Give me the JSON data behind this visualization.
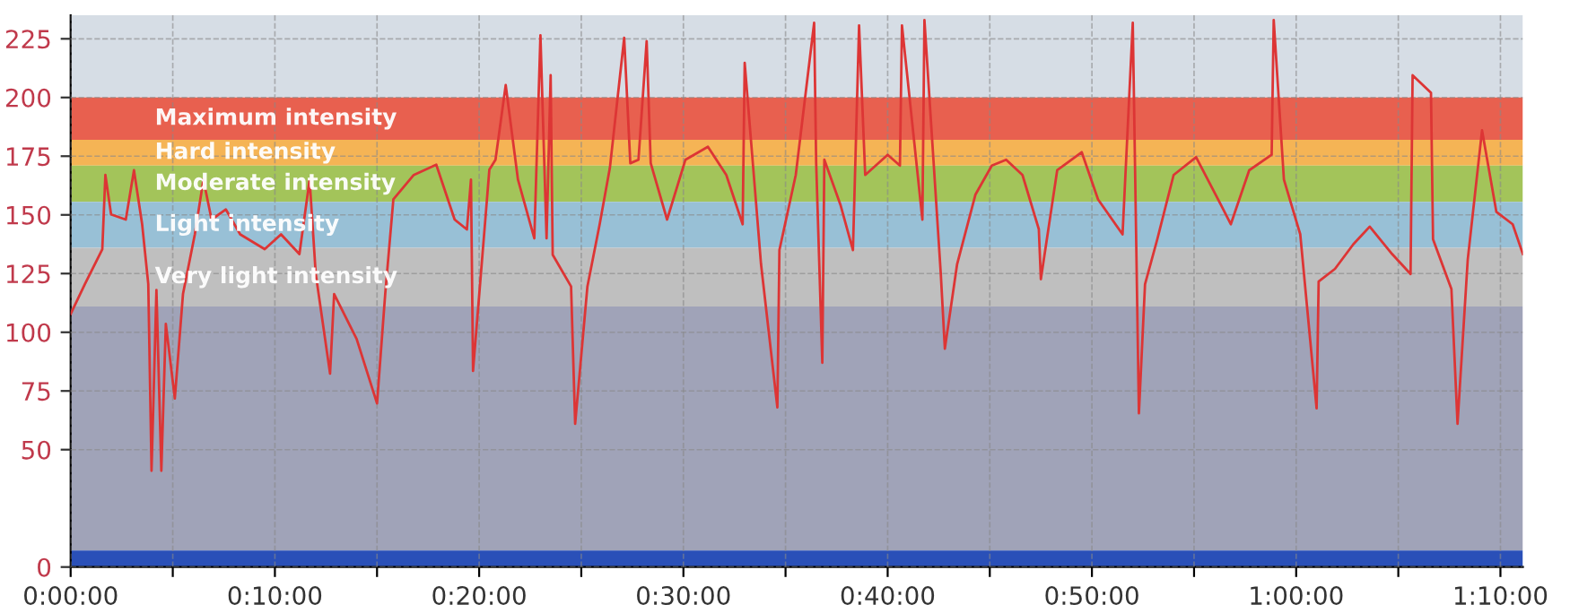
{
  "chart_data": {
    "type": "line",
    "x": [
      0.0,
      0.7,
      1.55,
      1.7,
      1.98,
      2.7,
      3.1,
      3.5,
      3.8,
      3.96,
      4.2,
      4.44,
      4.66,
      5.1,
      5.5,
      6.08,
      6.5,
      6.9,
      7.6,
      8.3,
      9.5,
      10.3,
      11.2,
      11.7,
      12.0,
      12.7,
      12.9,
      14.0,
      15.0,
      15.4,
      15.8,
      16.8,
      17.9,
      18.8,
      19.4,
      19.6,
      19.7,
      20.5,
      20.8,
      21.3,
      21.9,
      22.7,
      23.0,
      23.3,
      23.5,
      23.6,
      24.5,
      24.7,
      25.3,
      25.9,
      26.4,
      27.1,
      27.4,
      27.8,
      28.2,
      28.4,
      29.2,
      30.1,
      31.2,
      32.1,
      32.9,
      33.0,
      33.8,
      34.6,
      34.7,
      35.5,
      36.4,
      36.5,
      36.8,
      36.9,
      37.7,
      38.3,
      38.6,
      38.9,
      40.0,
      40.6,
      40.7,
      41.7,
      41.8,
      42.6,
      42.8,
      43.4,
      44.3,
      45.1,
      45.8,
      46.6,
      47.4,
      47.5,
      48.3,
      49.5,
      50.3,
      51.5,
      52.0,
      52.3,
      52.6,
      53.2,
      54.0,
      55.1,
      56.3,
      56.8,
      57.7,
      58.8,
      58.9,
      59.4,
      60.2,
      61.0,
      61.1,
      61.9,
      62.8,
      63.6,
      64.7,
      65.6,
      65.7,
      66.6,
      66.7,
      67.6,
      67.9,
      68.4,
      69.1,
      69.8,
      70.6,
      71.1
    ],
    "series": [
      {
        "color": "#dd3535",
        "values": [
          107.8,
          120.6,
          135.4,
          167,
          150.2,
          148,
          169,
          146,
          120.6,
          41,
          118,
          41,
          103.6,
          71.8,
          116.3,
          141.7,
          165,
          148,
          152.3,
          141.7,
          135.4,
          141.7,
          133.3,
          165,
          124.8,
          82.4,
          116.3,
          97.2,
          69.7,
          116.3,
          156.6,
          167,
          171.4,
          148,
          143.8,
          165,
          83.5,
          169.3,
          173.5,
          205.3,
          165,
          140,
          226.5,
          140,
          209.5,
          133,
          119.5,
          61,
          119.5,
          146,
          170,
          225.4,
          172,
          173.5,
          224,
          172,
          148,
          173.5,
          179,
          167,
          146,
          214.8,
          129,
          68,
          135,
          167,
          231.8,
          172,
          87,
          173.5,
          154,
          135,
          230.7,
          167,
          175.6,
          171,
          230.7,
          148,
          233,
          125,
          93,
          129,
          158.7,
          171,
          173.5,
          167,
          143.9,
          122.6,
          169,
          176.7,
          156.6,
          141.7,
          231.8,
          65.5,
          120.5,
          139.6,
          167,
          174.6,
          154.5,
          146,
          169,
          175.6,
          233,
          165,
          141.7,
          67.6,
          121.6,
          127,
          137.5,
          145,
          133.3,
          124.8,
          209.5,
          202,
          139.6,
          118.4,
          61,
          131,
          186,
          151.3,
          146,
          133.3
        ]
      }
    ],
    "xlim": [
      0,
      71.1
    ],
    "xticks": [
      {
        "value": 0,
        "label": "0:00:00"
      },
      {
        "value": 5,
        "label": null
      },
      {
        "value": 10,
        "label": "0:10:00"
      },
      {
        "value": 15,
        "label": null
      },
      {
        "value": 20,
        "label": "0:20:00"
      },
      {
        "value": 25,
        "label": null
      },
      {
        "value": 30,
        "label": "0:30:00"
      },
      {
        "value": 35,
        "label": null
      },
      {
        "value": 40,
        "label": "0:40:00"
      },
      {
        "value": 45,
        "label": null
      },
      {
        "value": 50,
        "label": "0:50:00"
      },
      {
        "value": 55,
        "label": null
      },
      {
        "value": 60,
        "label": "1:00:00"
      },
      {
        "value": 65,
        "label": null
      },
      {
        "value": 70,
        "label": "1:10:00"
      }
    ],
    "ylim": [
      0,
      235
    ],
    "yticks": [
      0,
      50,
      75,
      100,
      125,
      150,
      175,
      200,
      225
    ],
    "bands": [
      {
        "axis": "y",
        "from": 200,
        "to": 235,
        "label": null,
        "color": "#d6dde5"
      },
      {
        "axis": "y",
        "from": 182,
        "to": 200,
        "label": "Maximum intensity",
        "color": "#e8604f"
      },
      {
        "axis": "y",
        "from": 171,
        "to": 182,
        "label": "Hard intensity",
        "color": "#f5b455"
      },
      {
        "axis": "y",
        "from": 155.5,
        "to": 171,
        "label": "Moderate intensity",
        "color": "#a3c45a"
      },
      {
        "axis": "y",
        "from": 136,
        "to": 155.5,
        "label": "Light intensity",
        "color": "#98c0d6"
      },
      {
        "axis": "y",
        "from": 111,
        "to": 136,
        "label": "Very light intensity",
        "color": "#bfbfbf"
      },
      {
        "axis": "y",
        "from": 7,
        "to": 111,
        "label": null,
        "color": "#a0a3b8"
      },
      {
        "axis": "y",
        "from": 0,
        "to": 7,
        "label": null,
        "color": "#2a50b8"
      }
    ],
    "grid": true,
    "legend": false,
    "line_style": "solid",
    "marker": "none"
  }
}
